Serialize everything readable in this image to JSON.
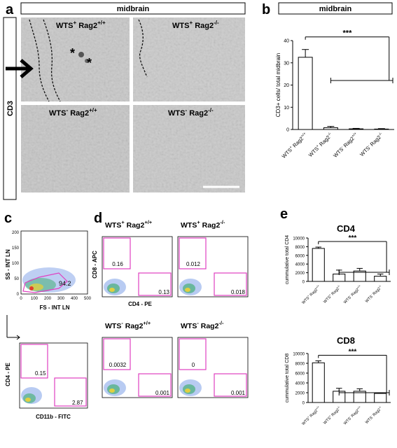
{
  "figure": {
    "panel_labels": [
      "a",
      "b",
      "c",
      "d",
      "e"
    ],
    "panel_a": {
      "region_header": "midbrain",
      "stain_label": "CD3",
      "images": [
        {
          "genotype": "WTS",
          "wts_sign": "+",
          "rag": "Rag2",
          "rag_sup": "+/+"
        },
        {
          "genotype": "WTS",
          "wts_sign": "+",
          "rag": "Rag2",
          "rag_sup": "-/-"
        },
        {
          "genotype": "WTS",
          "wts_sign": "-",
          "rag": "Rag2",
          "rag_sup": "+/+"
        },
        {
          "genotype": "WTS",
          "wts_sign": "-",
          "rag": "Rag2",
          "rag_sup": "-/-"
        }
      ]
    },
    "panel_c": {
      "top": {
        "ylabel": "SS - INT LN",
        "xlabel": "FS - INT LN",
        "gate_value": "94.2",
        "xticks": [
          "0",
          "100",
          "200",
          "300",
          "400",
          "500"
        ],
        "yticks": [
          "0",
          "50",
          "100",
          "150",
          "200"
        ]
      },
      "bottom": {
        "ylabel": "CD4 - PE",
        "xlabel": "CD11b - FITC",
        "gate_values": [
          "0.15",
          "2.87"
        ]
      }
    },
    "panel_d": {
      "ylabel": "CD8 - APC",
      "xlabel": "CD4 - PE",
      "plots": [
        {
          "title_wts": "WTS",
          "title_sign": "+",
          "title_rag": "Rag2",
          "title_sup": "+/+",
          "upper": "0.16",
          "lower": "0.13"
        },
        {
          "title_wts": "WTS",
          "title_sign": "+",
          "title_rag": "Rag2",
          "title_sup": "-/-",
          "upper": "0.012",
          "lower": "0.018"
        },
        {
          "title_wts": "WTS",
          "title_sign": "-",
          "title_rag": "Rag2",
          "title_sup": "+/+",
          "upper": "0.0032",
          "lower": "0.001"
        },
        {
          "title_wts": "WTS",
          "title_sign": "-",
          "title_rag": "Rag2",
          "title_sup": "-/-",
          "upper": "0",
          "lower": "0.001"
        }
      ]
    }
  },
  "chart_data": [
    {
      "type": "bar",
      "panel": "b",
      "title": "midbrain",
      "ylabel": "CD3+ cells/ total midbrain",
      "categories": [
        "WTS+ Rag2+/+",
        "WTS+ Rag2-/-",
        "WTS- Rag2+/+",
        "WTS- Rag2-/-"
      ],
      "values": [
        32.5,
        0.8,
        0.3,
        0.2
      ],
      "errors": [
        3.5,
        0.6,
        0.2,
        0.2
      ],
      "ylim": [
        0,
        40
      ],
      "yticks": [
        "0",
        "10",
        "20",
        "30",
        "40"
      ],
      "significance": "***"
    },
    {
      "type": "bar",
      "panel": "e",
      "title": "CD4",
      "ylabel": "cummulative total CD4",
      "categories": [
        "WTS+ Rag2+/+",
        "WTS+ Rag2-/-",
        "WTS- Rag2+/+",
        "WTS- Rag2-/-"
      ],
      "values": [
        7600,
        1700,
        2400,
        1200
      ],
      "errors": [
        300,
        900,
        600,
        500
      ],
      "ylim": [
        0,
        10000
      ],
      "yticks": [
        "0",
        "2000",
        "4000",
        "6000",
        "8000",
        "10000"
      ],
      "significance": "***"
    },
    {
      "type": "bar",
      "panel": "e",
      "title": "CD8",
      "ylabel": "cummulative total CD8",
      "categories": [
        "WTS+ Rag2+/+",
        "WTS+ Rag2-/-",
        "WTS- Rag2+/+",
        "WTS- Rag2-/-"
      ],
      "values": [
        8100,
        2300,
        2300,
        1850
      ],
      "errors": [
        400,
        600,
        500,
        100
      ],
      "ylim": [
        0,
        10000
      ],
      "yticks": [
        "0",
        "2000",
        "4000",
        "6000",
        "8000",
        "10000"
      ],
      "significance": "***"
    }
  ],
  "colors": {
    "gate": "#e040c0",
    "flow_dot": "#2a4fd0",
    "bar_fill": "#ffffff",
    "micrograph": "#c9c9c9"
  }
}
